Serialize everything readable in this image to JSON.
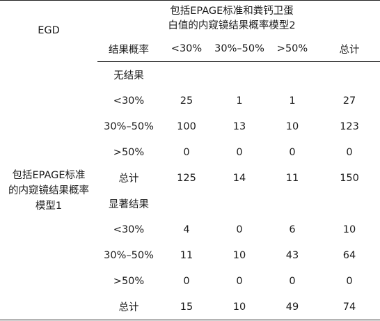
{
  "header": {
    "corner_label": "EGD",
    "model2_title": "包括EPAGE标准和粪钙卫蛋白值的内窥镜结果概率模型2",
    "columns": [
      "结果概率",
      "<30%",
      "30%–50%",
      ">50%",
      "总计"
    ]
  },
  "row_group_label": "包括EPAGE标准的内窥镜结果概率模型1",
  "sections": [
    {
      "title": "无结果",
      "rows": [
        {
          "label": "<30%",
          "values": [
            "25",
            "1",
            "1",
            "27"
          ]
        },
        {
          "label": "30%–50%",
          "values": [
            "100",
            "13",
            "10",
            "123"
          ]
        },
        {
          "label": ">50%",
          "values": [
            "0",
            "0",
            "0",
            "0"
          ]
        },
        {
          "label": "总计",
          "values": [
            "125",
            "14",
            "11",
            "150"
          ]
        }
      ]
    },
    {
      "title": "显著结果",
      "rows": [
        {
          "label": "<30%",
          "values": [
            "4",
            "0",
            "6",
            "10"
          ]
        },
        {
          "label": "30%–50%",
          "values": [
            "11",
            "10",
            "43",
            "64"
          ]
        },
        {
          "label": ">50%",
          "values": [
            "0",
            "0",
            "0",
            "0"
          ]
        },
        {
          "label": "总计",
          "values": [
            "15",
            "10",
            "49",
            "74"
          ]
        }
      ]
    }
  ]
}
